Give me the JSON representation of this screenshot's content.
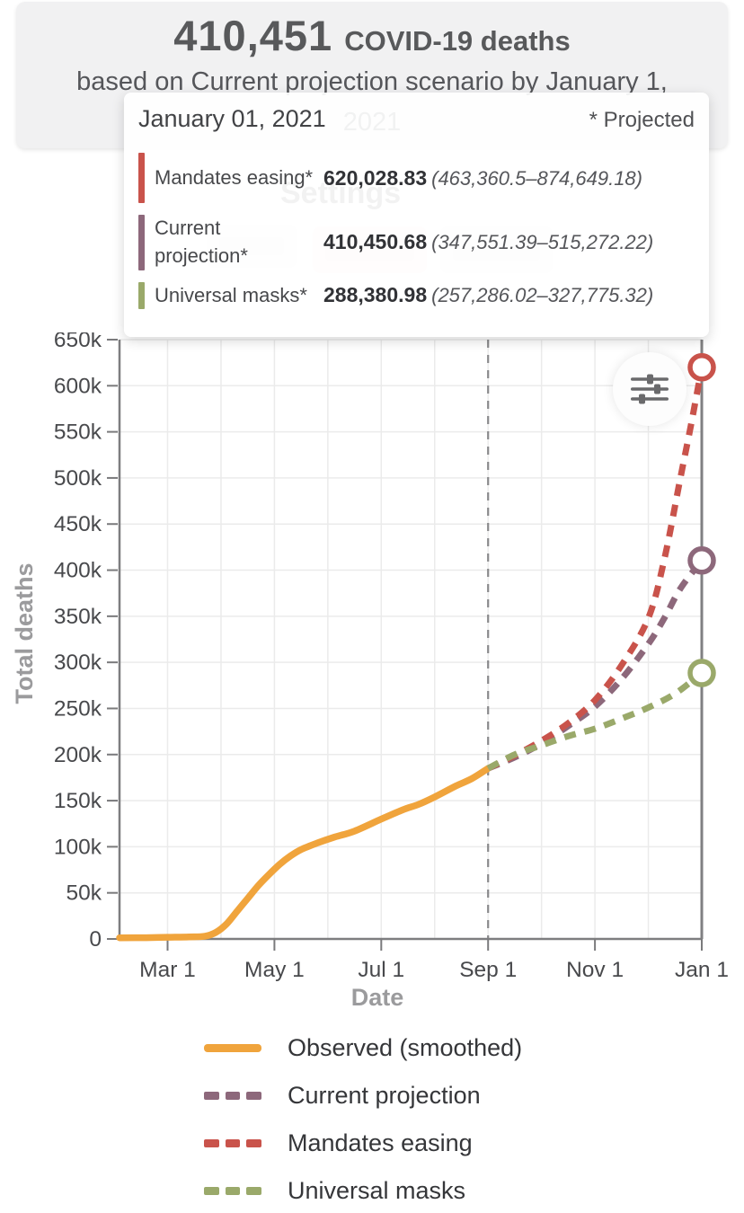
{
  "header": {
    "deaths_total": "410,451",
    "deaths_label": "COVID-19 deaths",
    "subtitle_line1": "based on Current projection scenario by January 1,",
    "subtitle_line2": "2021"
  },
  "background": {
    "settings_label": "Settings"
  },
  "tooltip": {
    "date": "January 01, 2021",
    "projected_note": "* Projected",
    "rows": [
      {
        "label": "Mandates easing*",
        "value": "620,028.83",
        "range": "(463,360.5–874,649.18)",
        "color": "#C9534B"
      },
      {
        "label": "Current projection*",
        "value": "410,450.68",
        "range": "(347,551.39–515,272.22)",
        "color": "#8D687B"
      },
      {
        "label": "Universal masks*",
        "value": "288,380.98",
        "range": "(257,286.02–327,775.32)",
        "color": "#9AA96A"
      }
    ]
  },
  "chart_data": {
    "type": "line",
    "xlabel": "Date",
    "ylabel": "Total deaths",
    "y_unit": "deaths",
    "y_values_in": "thousands",
    "ylim": [
      0,
      650000
    ],
    "y_ticks": [
      "0",
      "50k",
      "100k",
      "150k",
      "200k",
      "250k",
      "300k",
      "350k",
      "400k",
      "450k",
      "500k",
      "550k",
      "600k",
      "650k"
    ],
    "x_ticks": [
      "Mar 1",
      "May 1",
      "Jul 1",
      "Sep 1",
      "Nov 1",
      "Jan 1"
    ],
    "x_tick_positions_months": [
      1,
      3,
      5,
      7,
      9,
      11
    ],
    "x_unit": "months since Feb 1, 2020 (Mar 1 = 1, Jan 1 2021 = 11)",
    "projection_start_t": 7,
    "projection_start_label": "Sep 1",
    "grid": true,
    "series": [
      {
        "key": "observed",
        "name": "Observed (smoothed)",
        "color": "#F0A43C",
        "style": "solid",
        "end_marker": false,
        "points": [
          [
            0.1,
            1.2
          ],
          [
            0.6,
            1.4
          ],
          [
            1.0,
            1.8
          ],
          [
            1.4,
            2.2
          ],
          [
            1.7,
            3
          ],
          [
            1.9,
            7
          ],
          [
            2.1,
            16
          ],
          [
            2.3,
            30
          ],
          [
            2.5,
            44
          ],
          [
            2.7,
            58
          ],
          [
            2.9,
            70
          ],
          [
            3.1,
            81
          ],
          [
            3.3,
            90
          ],
          [
            3.5,
            97
          ],
          [
            3.8,
            104
          ],
          [
            4.1,
            110
          ],
          [
            4.5,
            117
          ],
          [
            5.0,
            130
          ],
          [
            5.4,
            140
          ],
          [
            5.7,
            146
          ],
          [
            6.0,
            154
          ],
          [
            6.4,
            166
          ],
          [
            6.7,
            174
          ],
          [
            7.0,
            185
          ]
        ]
      },
      {
        "key": "current",
        "name": "Current projection",
        "color": "#8D687B",
        "style": "dashed",
        "end_marker": true,
        "points": [
          [
            7,
            185
          ],
          [
            7.5,
            197
          ],
          [
            8,
            212
          ],
          [
            8.5,
            231
          ],
          [
            9,
            252
          ],
          [
            9.5,
            282
          ],
          [
            10,
            320
          ],
          [
            10.3,
            348
          ],
          [
            10.6,
            380
          ],
          [
            11,
            410.5
          ]
        ]
      },
      {
        "key": "mandates",
        "name": "Mandates easing",
        "color": "#C9534B",
        "style": "dashed",
        "end_marker": true,
        "points": [
          [
            7,
            185
          ],
          [
            7.5,
            199
          ],
          [
            8,
            215
          ],
          [
            8.5,
            234
          ],
          [
            9,
            259
          ],
          [
            9.5,
            297
          ],
          [
            10,
            348
          ],
          [
            10.3,
            412
          ],
          [
            10.6,
            500
          ],
          [
            10.8,
            558
          ],
          [
            11,
            620
          ]
        ]
      },
      {
        "key": "masks",
        "name": "Universal masks",
        "color": "#9AA96A",
        "style": "dashed",
        "end_marker": true,
        "points": [
          [
            7,
            185
          ],
          [
            7.5,
            200
          ],
          [
            8,
            210
          ],
          [
            8.5,
            220
          ],
          [
            9,
            228
          ],
          [
            9.5,
            239
          ],
          [
            10,
            251
          ],
          [
            10.5,
            266
          ],
          [
            11,
            288.4
          ]
        ]
      }
    ]
  },
  "legend": {
    "items": [
      {
        "label": "Observed (smoothed)",
        "series": "observed"
      },
      {
        "label": "Current projection",
        "series": "current"
      },
      {
        "label": "Mandates easing",
        "series": "mandates"
      },
      {
        "label": "Universal masks",
        "series": "masks"
      }
    ]
  },
  "icons": {
    "settings_icon": "sliders-icon"
  }
}
